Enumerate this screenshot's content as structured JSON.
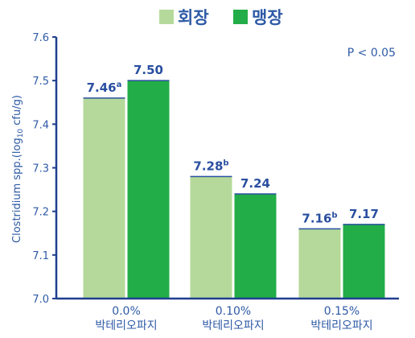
{
  "chart_data": {
    "type": "bar",
    "categories": [
      [
        "0.0%",
        "박테리오파지"
      ],
      [
        "0.10%",
        "박테리오파지"
      ],
      [
        "0.15%",
        "박테리오파지"
      ]
    ],
    "series": [
      {
        "name": "회장",
        "color": "#b5d99a",
        "values": [
          7.46,
          7.28,
          7.16
        ],
        "labels": [
          "7.46",
          "7.28",
          "7.16"
        ],
        "superscripts": [
          "a",
          "b",
          "b"
        ]
      },
      {
        "name": "맹장",
        "color": "#22ad48",
        "values": [
          7.5,
          7.24,
          7.17
        ],
        "labels": [
          "7.50",
          "7.24",
          "7.17"
        ],
        "superscripts": [
          "",
          "",
          ""
        ]
      }
    ],
    "ylabel": "Clostridium spp.(log10 cfu/g)",
    "ylim": [
      7.0,
      7.6
    ],
    "yticks": [
      "7.0",
      "7.1",
      "7.2",
      "7.3",
      "7.4",
      "7.5",
      "7.6"
    ],
    "annotation": "P < 0.05",
    "legend_position": "top-center",
    "axis_color": "#1f3f8f",
    "grid": false
  }
}
